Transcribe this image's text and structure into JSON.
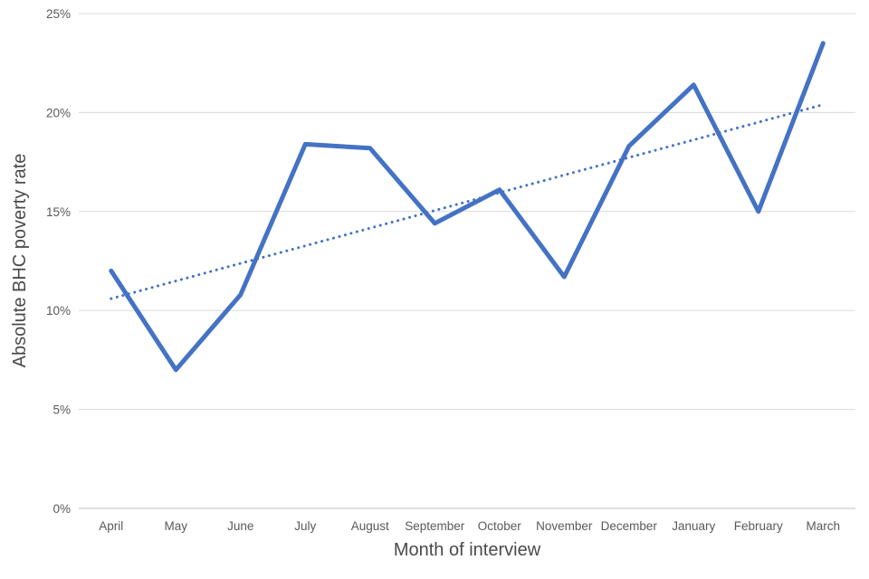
{
  "chart_data": {
    "type": "line",
    "title": "",
    "xlabel": "Month of interview",
    "ylabel": "Absolute BHC poverty rate",
    "categories": [
      "April",
      "May",
      "June",
      "July",
      "August",
      "September",
      "October",
      "November",
      "December",
      "January",
      "February",
      "March"
    ],
    "series": [
      {
        "name": "Absolute BHC poverty rate",
        "style": "solid",
        "color": "#4472C4",
        "values": [
          12.0,
          7.0,
          10.8,
          18.4,
          18.2,
          14.4,
          16.1,
          11.7,
          18.3,
          21.4,
          15.0,
          23.5
        ]
      },
      {
        "name": "Linear trend",
        "style": "dotted",
        "color": "#4472C4",
        "values": [
          10.6,
          11.49,
          12.38,
          13.27,
          14.16,
          15.05,
          15.95,
          16.84,
          17.73,
          18.62,
          19.51,
          20.4
        ]
      }
    ],
    "y_axis": {
      "min": 0,
      "max": 25,
      "step": 5,
      "tick_labels": [
        "0%",
        "5%",
        "10%",
        "15%",
        "20%",
        "25%"
      ]
    },
    "x_axis": {
      "title": "Month of interview"
    },
    "grid": "horizontal",
    "legend": "none",
    "colors": {
      "line": "#4472C4",
      "gridline": "#D9D9D9",
      "axis_line": "#BFBFBF",
      "tick_text": "#595959",
      "axis_title_text": "#4a4a4a",
      "background": "#ffffff"
    }
  }
}
